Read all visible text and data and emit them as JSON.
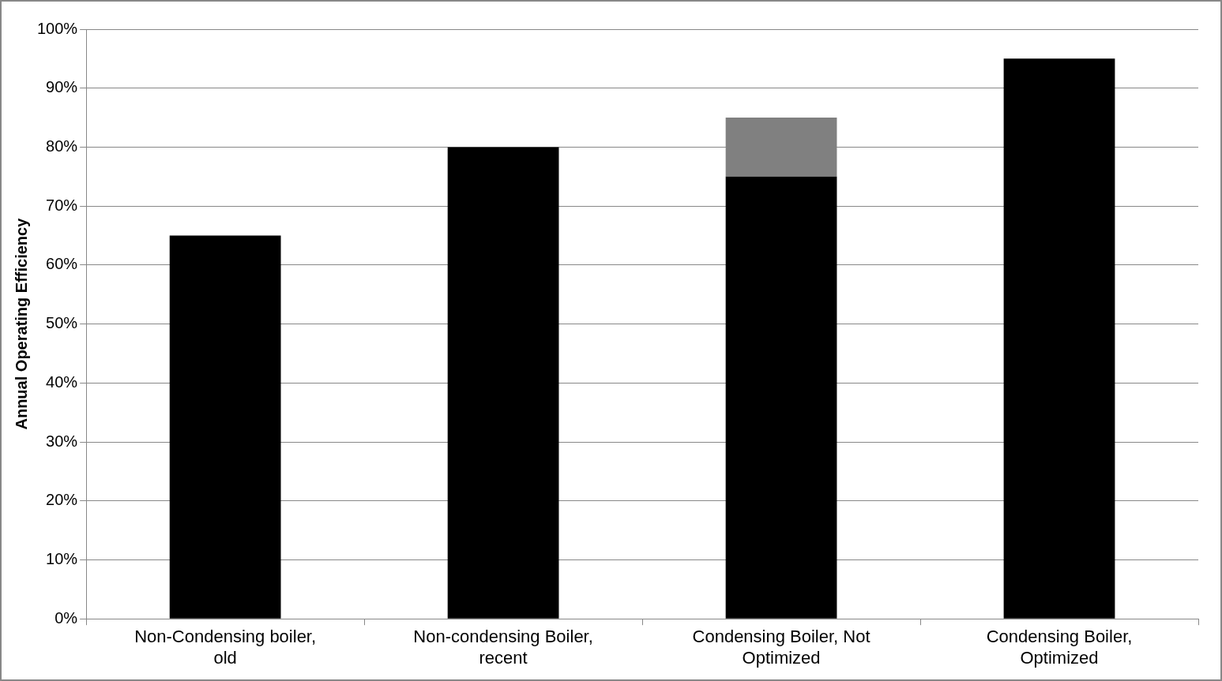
{
  "chart_data": {
    "type": "bar",
    "ylabel": "Annual Operating Efficiency",
    "categories": [
      "Non-Condensing boiler, old",
      "Non-condensing Boiler, recent",
      "Condensing Boiler, Not Optimized",
      "Condensing Boiler, Optimized"
    ],
    "stacked": true,
    "series": [
      {
        "color": "#000000",
        "values": [
          65,
          80,
          75,
          95
        ]
      },
      {
        "color": "#808080",
        "values": [
          null,
          null,
          10,
          null
        ]
      }
    ],
    "ylim": [
      0,
      100
    ],
    "yticks": [
      {
        "value": 0,
        "label": "0%"
      },
      {
        "value": 10,
        "label": "10%"
      },
      {
        "value": 20,
        "label": "20%"
      },
      {
        "value": 30,
        "label": "30%"
      },
      {
        "value": 40,
        "label": "40%"
      },
      {
        "value": 50,
        "label": "50%"
      },
      {
        "value": 60,
        "label": "60%"
      },
      {
        "value": 70,
        "label": "70%"
      },
      {
        "value": 80,
        "label": "80%"
      },
      {
        "value": 90,
        "label": "90%"
      },
      {
        "value": 100,
        "label": "100%"
      }
    ],
    "grid": "y",
    "legend": false
  }
}
